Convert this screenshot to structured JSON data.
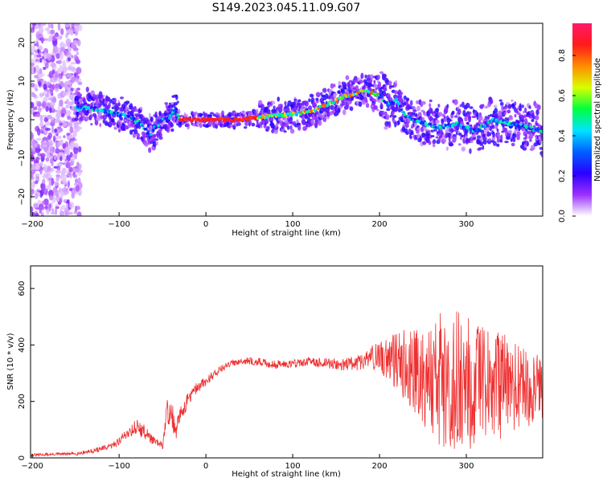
{
  "figure_title": "S149.2023.045.11.09.G07",
  "chart_data": [
    {
      "type": "heatmap",
      "title": "",
      "xlabel": "Height of straight line (km)",
      "ylabel": "Frequency (Hz)",
      "xlim": [
        -202,
        388
      ],
      "ylim": [
        -25,
        25
      ],
      "xticks": [
        -200,
        -100,
        0,
        100,
        200,
        300
      ],
      "yticks": [
        -20,
        -10,
        0,
        10,
        20
      ],
      "grid": false,
      "colorbar": {
        "label": "Normalized spectral amplitude",
        "range": [
          0.0,
          0.96
        ],
        "ticks": [
          0.0,
          0.2,
          0.4,
          0.6,
          0.8
        ],
        "colors": [
          "#ffffff",
          "#9b30ff",
          "#2a00ff",
          "#0060ff",
          "#00e5ff",
          "#00ff40",
          "#d8ff00",
          "#ff8c00",
          "#ff1a1a",
          "#ff1a6a"
        ]
      },
      "ridge_frequency_hz": {
        "x": [
          -150,
          -130,
          -110,
          -90,
          -75,
          -65,
          -58,
          -50,
          -40,
          -35,
          -30,
          0,
          40,
          60,
          80,
          100,
          120,
          140,
          160,
          180,
          200,
          210,
          220,
          230,
          250,
          270,
          290,
          310,
          330,
          350,
          370,
          388
        ],
        "y": [
          3,
          3,
          2,
          1,
          -1,
          -4,
          -2,
          0,
          1,
          3,
          0,
          0,
          0,
          0.5,
          1,
          1.5,
          2,
          4,
          6,
          7.5,
          6.5,
          4,
          5,
          1,
          -1,
          -2,
          -1,
          -3,
          0,
          -1,
          -2,
          -3
        ]
      },
      "noise_region_x": [
        -202,
        -145
      ]
    },
    {
      "type": "line",
      "title": "",
      "xlabel": "Height of straight line (km)",
      "ylabel": "SNR (10 * v/v)",
      "xlim": [
        -202,
        388
      ],
      "ylim": [
        0,
        680
      ],
      "xticks": [
        -200,
        -100,
        0,
        100,
        200,
        300
      ],
      "yticks": [
        0,
        200,
        400,
        600
      ],
      "grid": false,
      "series": [
        {
          "color": "#ee3030",
          "x": [
            -202,
            -150,
            -130,
            -110,
            -100,
            -90,
            -80,
            -70,
            -60,
            -50,
            -45,
            -40,
            -35,
            -30,
            -20,
            -10,
            0,
            10,
            20,
            30,
            40,
            60,
            80,
            100,
            120,
            140,
            160,
            180,
            190,
            200,
            210,
            220,
            230,
            240,
            250,
            260,
            270,
            280,
            290,
            300,
            310,
            320,
            330,
            340,
            350,
            360,
            370,
            380,
            388
          ],
          "y": [
            10,
            15,
            25,
            40,
            60,
            90,
            110,
            90,
            60,
            40,
            160,
            170,
            80,
            150,
            210,
            250,
            270,
            300,
            320,
            335,
            345,
            340,
            330,
            335,
            340,
            335,
            330,
            340,
            360,
            350,
            360,
            340,
            330,
            320,
            300,
            290,
            280,
            280,
            270,
            260,
            260,
            255,
            250,
            250,
            255,
            245,
            250,
            240,
            245
          ],
          "spread": [
            5,
            6,
            8,
            10,
            15,
            20,
            30,
            25,
            15,
            15,
            50,
            60,
            40,
            30,
            25,
            20,
            18,
            15,
            12,
            12,
            12,
            14,
            15,
            15,
            16,
            18,
            22,
            30,
            40,
            60,
            80,
            100,
            130,
            160,
            190,
            210,
            240,
            260,
            250,
            240,
            230,
            220,
            210,
            200,
            190,
            170,
            150,
            130,
            120
          ]
        }
      ]
    }
  ]
}
